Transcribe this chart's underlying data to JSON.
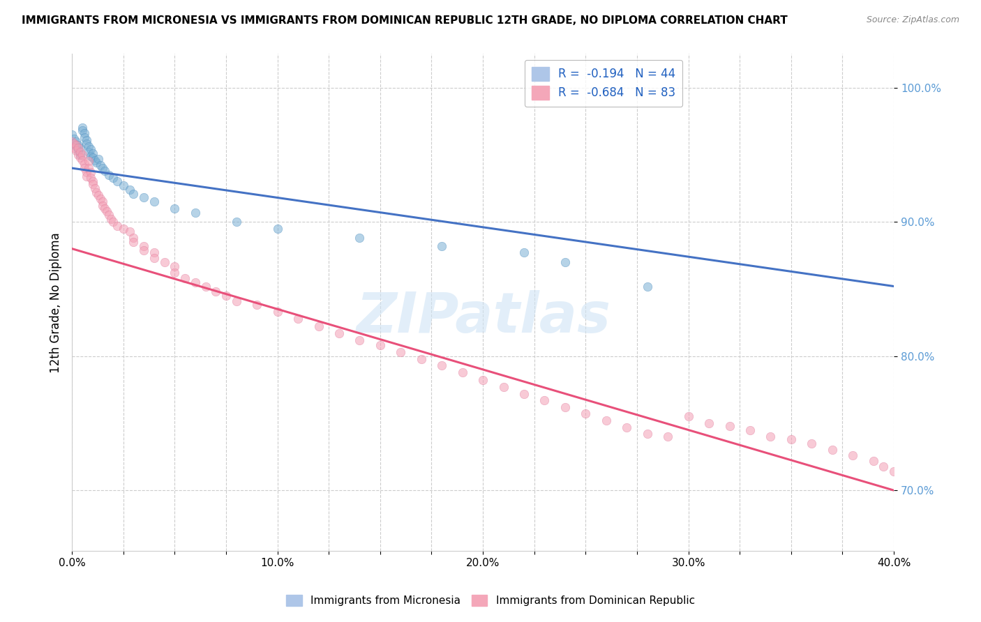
{
  "title": "IMMIGRANTS FROM MICRONESIA VS IMMIGRANTS FROM DOMINICAN REPUBLIC 12TH GRADE, NO DIPLOMA CORRELATION CHART",
  "source": "Source: ZipAtlas.com",
  "ylabel_label": "12th Grade, No Diploma",
  "xlim": [
    0.0,
    0.4
  ],
  "ylim": [
    0.655,
    1.025
  ],
  "watermark": "ZIPatlas",
  "legend_entries": [
    {
      "label": "R =  -0.194   N = 44",
      "color": "#aec6e8"
    },
    {
      "label": "R =  -0.684   N = 83",
      "color": "#f4a7b9"
    }
  ],
  "blue_dots": [
    [
      0.0,
      0.965
    ],
    [
      0.001,
      0.962
    ],
    [
      0.001,
      0.958
    ],
    [
      0.002,
      0.96
    ],
    [
      0.002,
      0.956
    ],
    [
      0.003,
      0.957
    ],
    [
      0.003,
      0.953
    ],
    [
      0.004,
      0.955
    ],
    [
      0.004,
      0.95
    ],
    [
      0.005,
      0.97
    ],
    [
      0.005,
      0.968
    ],
    [
      0.006,
      0.966
    ],
    [
      0.006,
      0.963
    ],
    [
      0.007,
      0.961
    ],
    [
      0.007,
      0.958
    ],
    [
      0.008,
      0.956
    ],
    [
      0.008,
      0.952
    ],
    [
      0.009,
      0.954
    ],
    [
      0.009,
      0.949
    ],
    [
      0.01,
      0.951
    ],
    [
      0.01,
      0.948
    ],
    [
      0.011,
      0.946
    ],
    [
      0.012,
      0.944
    ],
    [
      0.013,
      0.947
    ],
    [
      0.014,
      0.942
    ],
    [
      0.015,
      0.94
    ],
    [
      0.016,
      0.938
    ],
    [
      0.018,
      0.935
    ],
    [
      0.02,
      0.933
    ],
    [
      0.022,
      0.93
    ],
    [
      0.025,
      0.927
    ],
    [
      0.028,
      0.924
    ],
    [
      0.03,
      0.921
    ],
    [
      0.035,
      0.918
    ],
    [
      0.04,
      0.915
    ],
    [
      0.05,
      0.91
    ],
    [
      0.06,
      0.907
    ],
    [
      0.08,
      0.9
    ],
    [
      0.1,
      0.895
    ],
    [
      0.14,
      0.888
    ],
    [
      0.18,
      0.882
    ],
    [
      0.22,
      0.877
    ],
    [
      0.24,
      0.87
    ],
    [
      0.28,
      0.852
    ]
  ],
  "pink_dots": [
    [
      0.0,
      0.96
    ],
    [
      0.001,
      0.958
    ],
    [
      0.001,
      0.955
    ],
    [
      0.002,
      0.957
    ],
    [
      0.002,
      0.953
    ],
    [
      0.003,
      0.955
    ],
    [
      0.003,
      0.95
    ],
    [
      0.004,
      0.952
    ],
    [
      0.004,
      0.948
    ],
    [
      0.005,
      0.95
    ],
    [
      0.005,
      0.946
    ],
    [
      0.006,
      0.943
    ],
    [
      0.006,
      0.94
    ],
    [
      0.007,
      0.937
    ],
    [
      0.007,
      0.934
    ],
    [
      0.008,
      0.945
    ],
    [
      0.008,
      0.94
    ],
    [
      0.009,
      0.937
    ],
    [
      0.009,
      0.933
    ],
    [
      0.01,
      0.93
    ],
    [
      0.01,
      0.928
    ],
    [
      0.011,
      0.925
    ],
    [
      0.012,
      0.922
    ],
    [
      0.013,
      0.92
    ],
    [
      0.014,
      0.917
    ],
    [
      0.015,
      0.915
    ],
    [
      0.015,
      0.912
    ],
    [
      0.016,
      0.91
    ],
    [
      0.017,
      0.908
    ],
    [
      0.018,
      0.905
    ],
    [
      0.019,
      0.902
    ],
    [
      0.02,
      0.9
    ],
    [
      0.022,
      0.897
    ],
    [
      0.025,
      0.895
    ],
    [
      0.028,
      0.893
    ],
    [
      0.03,
      0.888
    ],
    [
      0.03,
      0.885
    ],
    [
      0.035,
      0.882
    ],
    [
      0.035,
      0.879
    ],
    [
      0.04,
      0.877
    ],
    [
      0.04,
      0.873
    ],
    [
      0.045,
      0.87
    ],
    [
      0.05,
      0.867
    ],
    [
      0.05,
      0.862
    ],
    [
      0.055,
      0.858
    ],
    [
      0.06,
      0.855
    ],
    [
      0.065,
      0.852
    ],
    [
      0.07,
      0.848
    ],
    [
      0.075,
      0.845
    ],
    [
      0.08,
      0.841
    ],
    [
      0.09,
      0.838
    ],
    [
      0.1,
      0.833
    ],
    [
      0.11,
      0.828
    ],
    [
      0.12,
      0.822
    ],
    [
      0.13,
      0.817
    ],
    [
      0.14,
      0.812
    ],
    [
      0.15,
      0.808
    ],
    [
      0.16,
      0.803
    ],
    [
      0.17,
      0.798
    ],
    [
      0.18,
      0.793
    ],
    [
      0.19,
      0.788
    ],
    [
      0.2,
      0.782
    ],
    [
      0.21,
      0.777
    ],
    [
      0.22,
      0.772
    ],
    [
      0.23,
      0.767
    ],
    [
      0.24,
      0.762
    ],
    [
      0.25,
      0.757
    ],
    [
      0.26,
      0.752
    ],
    [
      0.27,
      0.747
    ],
    [
      0.28,
      0.742
    ],
    [
      0.29,
      0.74
    ],
    [
      0.3,
      0.755
    ],
    [
      0.31,
      0.75
    ],
    [
      0.32,
      0.748
    ],
    [
      0.33,
      0.745
    ],
    [
      0.34,
      0.74
    ],
    [
      0.35,
      0.738
    ],
    [
      0.36,
      0.735
    ],
    [
      0.37,
      0.73
    ],
    [
      0.38,
      0.726
    ],
    [
      0.39,
      0.722
    ],
    [
      0.395,
      0.718
    ],
    [
      0.4,
      0.714
    ]
  ],
  "blue_line": {
    "x0": 0.0,
    "y0": 0.94,
    "x1": 0.4,
    "y1": 0.852
  },
  "pink_line": {
    "x0": 0.0,
    "y0": 0.88,
    "x1": 0.4,
    "y1": 0.7
  },
  "dot_size": 80,
  "dot_alpha": 0.55,
  "blue_dot_color": "#7bafd4",
  "pink_dot_color": "#f4a0b5",
  "blue_line_color": "#4472c4",
  "pink_line_color": "#e8507a",
  "grid_color": "#cccccc",
  "background_color": "#ffffff",
  "ytick_labels": [
    "70.0%",
    "80.0%",
    "90.0%",
    "100.0%"
  ],
  "ytick_values": [
    0.7,
    0.8,
    0.9,
    1.0
  ],
  "xtick_values": [
    0.0,
    0.025,
    0.05,
    0.075,
    0.1,
    0.125,
    0.15,
    0.175,
    0.2,
    0.225,
    0.25,
    0.275,
    0.3,
    0.325,
    0.35,
    0.375,
    0.4
  ],
  "xtick_labels": [
    "0.0%",
    "",
    "",
    "",
    "10.0%",
    "",
    "",
    "",
    "20.0%",
    "",
    "",
    "",
    "30.0%",
    "",
    "",
    "",
    "40.0%"
  ]
}
